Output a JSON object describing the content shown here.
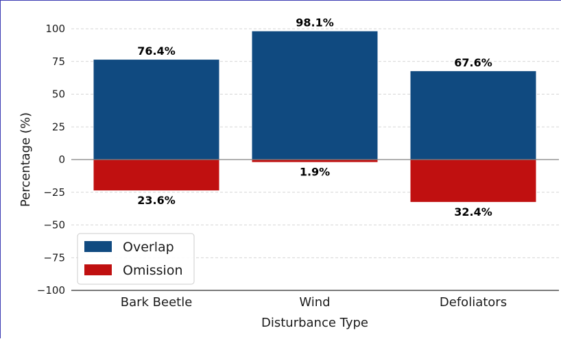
{
  "chart_data": {
    "type": "bar",
    "categories": [
      "Bark Beetle",
      "Wind",
      "Defoliators"
    ],
    "series": [
      {
        "name": "Overlap",
        "values": [
          76.4,
          98.1,
          67.6
        ],
        "labels": [
          "76.4%",
          "98.1%",
          "67.6%"
        ],
        "color": "#104a80"
      },
      {
        "name": "Omission",
        "values": [
          -23.6,
          -1.9,
          -32.4
        ],
        "labels": [
          "23.6%",
          "1.9%",
          "32.4%"
        ],
        "color": "#c01010"
      }
    ],
    "xlabel": "Disturbance Type",
    "ylabel": "Percentage (%)",
    "ylim": [
      -100,
      110
    ],
    "yticks": [
      100,
      75,
      50,
      25,
      0,
      -25,
      -50,
      -75,
      -100
    ],
    "ytick_labels": [
      "100",
      "75",
      "50",
      "25",
      "0",
      "−25",
      "−50",
      "−75",
      "−100"
    ],
    "grid": "horizontal-dashed",
    "legend_position": "lower-left"
  }
}
